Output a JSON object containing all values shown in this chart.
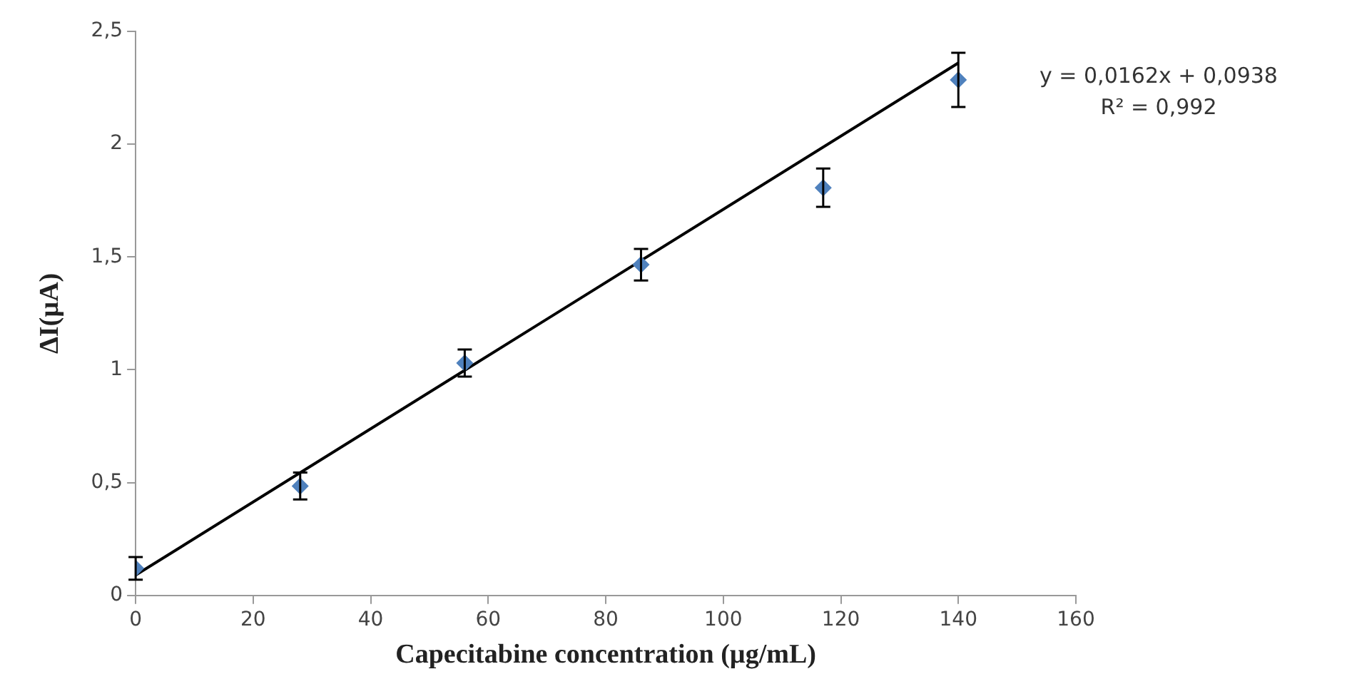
{
  "chart_data": {
    "type": "scatter",
    "xlabel": "Capecitabine concentration (µg/mL)",
    "ylabel": "ΔI(µA)",
    "xlim": [
      0,
      160
    ],
    "xticks": [
      0,
      20,
      40,
      60,
      80,
      100,
      120,
      140,
      160
    ],
    "ylim": [
      0,
      2.5
    ],
    "yticks": [
      0,
      {
        "value": 0.5,
        "label": "0,5"
      },
      1,
      {
        "value": 1.5,
        "label": "1,5"
      },
      2,
      {
        "value": 2.5,
        "label": "2,5"
      }
    ],
    "grid": false,
    "legend": false,
    "marker": "diamond",
    "series": [
      {
        "color": "#4f81bd",
        "x": [
          0,
          28,
          56,
          86,
          117,
          140
        ],
        "values": [
          0.12,
          0.485,
          1.03,
          1.466,
          1.807,
          2.285
        ],
        "errors": [
          0.05,
          0.06,
          0.06,
          0.07,
          0.085,
          0.12
        ]
      },
      {
        "type": "line",
        "color": "#000000",
        "marker": "none",
        "line_style": "solid",
        "x": [
          0,
          140
        ],
        "values": [
          0.09,
          2.36
        ]
      }
    ],
    "annotations": [
      "y = 0,0162x + 0,0938",
      "R² = 0,992"
    ]
  }
}
